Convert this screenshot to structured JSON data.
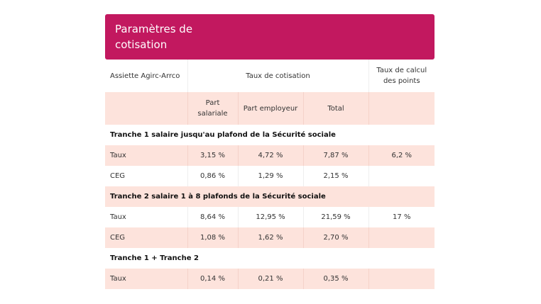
{
  "title": "Paramètres de cotisation",
  "colors": {
    "header": "#c2185f",
    "row_highlight": "#fde3dc"
  },
  "header": {
    "assiette": "Assiette Agirc-Arrco",
    "taux_cotisation": "Taux de cotisation",
    "taux_calcul": "Taux de calcul des points",
    "part_salariale": "Part salariale",
    "part_employeur": "Part employeur",
    "total": "Total"
  },
  "sections": [
    {
      "title": "Tranche 1 salaire jusqu'au plafond de la Sécurité sociale",
      "rows": [
        {
          "label": "Taux",
          "salariale": "3,15 %",
          "employeur": "4,72 %",
          "total": "7,87 %",
          "points": "6,2 %"
        },
        {
          "label": "CEG",
          "salariale": "0,86 %",
          "employeur": "1,29 %",
          "total": "2,15 %",
          "points": ""
        }
      ]
    },
    {
      "title": "Tranche 2 salaire 1 à 8 plafonds de la Sécurité sociale",
      "rows": [
        {
          "label": "Taux",
          "salariale": "8,64 %",
          "employeur": "12,95 %",
          "total": "21,59 %",
          "points": "17 %"
        },
        {
          "label": "CEG",
          "salariale": "1,08 %",
          "employeur": "1,62 %",
          "total": "2,70 %",
          "points": ""
        }
      ]
    },
    {
      "title": "Tranche 1 + Tranche 2",
      "rows": [
        {
          "label": "Taux",
          "salariale": "0,14 %",
          "employeur": "0,21 %",
          "total": "0,35 %",
          "points": ""
        }
      ]
    }
  ]
}
